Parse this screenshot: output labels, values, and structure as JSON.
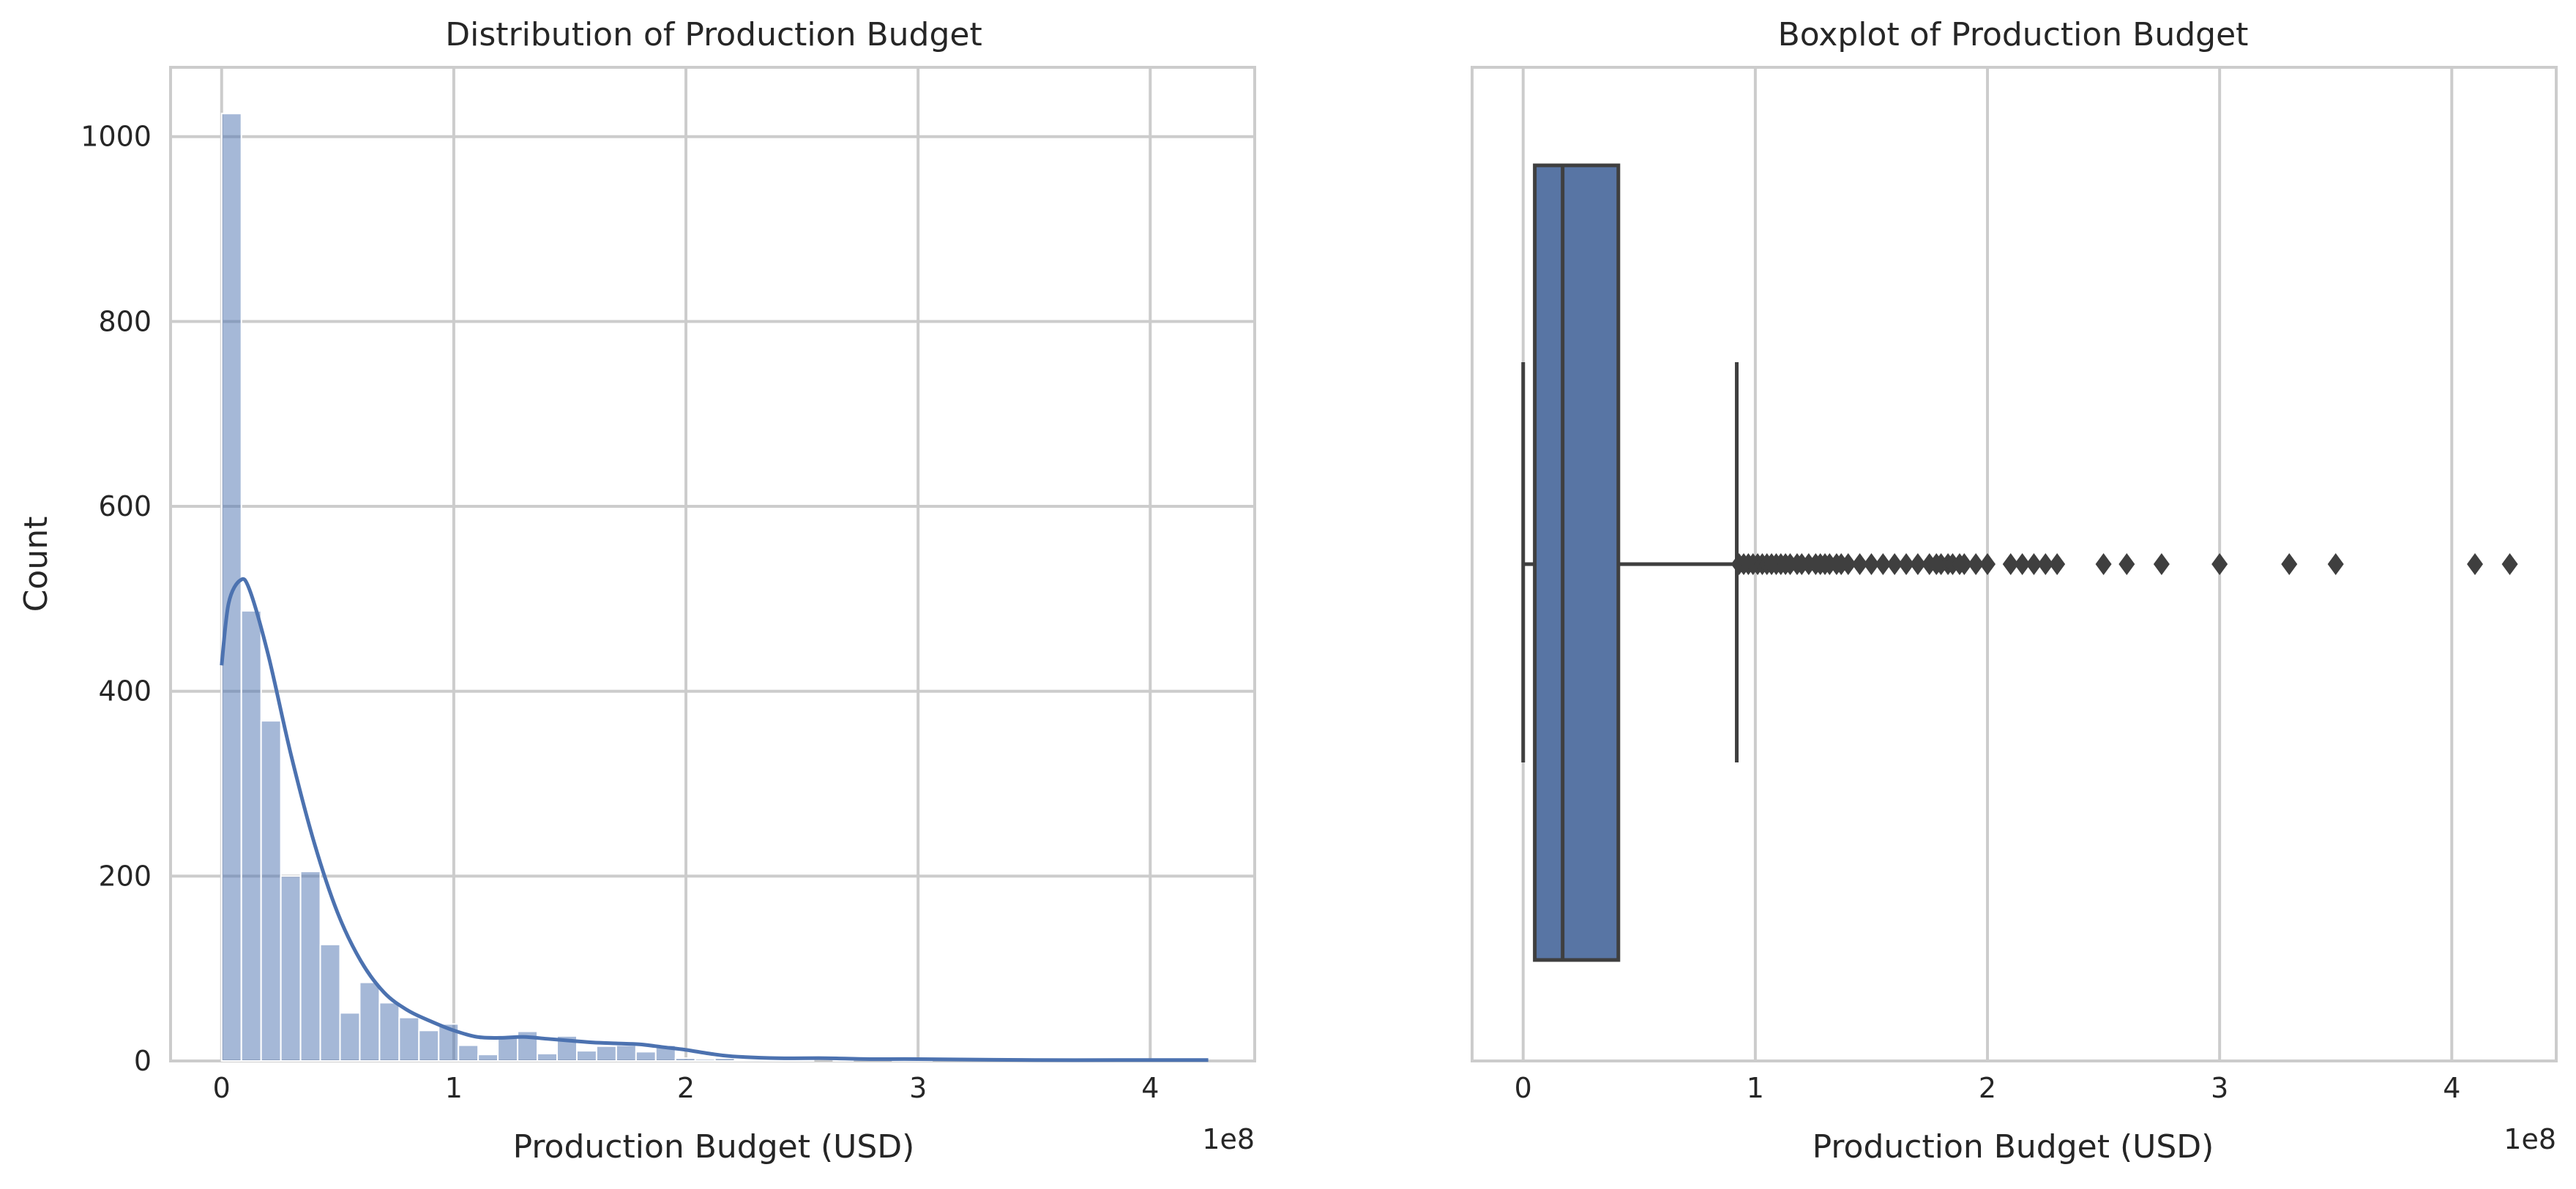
{
  "chart_data": [
    {
      "type": "histogram",
      "title": "Distribution of Production Budget",
      "xlabel": "Production Budget (USD)",
      "ylabel": "Count",
      "x_offset_label": "1e8",
      "xlim": [
        -0.22,
        4.45
      ],
      "ylim": [
        0,
        1075
      ],
      "x_ticks": [
        0,
        1,
        2,
        3,
        4
      ],
      "y_ticks": [
        0,
        200,
        400,
        600,
        800,
        1000
      ],
      "grid": true,
      "kde": true,
      "color": "#4c72b0",
      "bins": {
        "start": 0.0,
        "width": 0.085,
        "counts": [
          1025,
          487,
          368,
          200,
          205,
          126,
          52,
          85,
          63,
          47,
          33,
          40,
          17,
          7,
          27,
          32,
          8,
          27,
          11,
          16,
          17,
          10,
          17,
          3,
          2,
          3,
          1,
          1,
          1,
          1,
          0,
          1,
          0,
          0,
          1,
          1,
          0,
          0,
          0,
          0,
          0,
          1,
          0,
          0,
          0,
          0,
          0,
          0,
          0,
          0
        ]
      },
      "kde_points": [
        [
          0.0,
          428
        ],
        [
          0.03,
          495
        ],
        [
          0.08,
          520
        ],
        [
          0.12,
          510
        ],
        [
          0.2,
          440
        ],
        [
          0.3,
          330
        ],
        [
          0.4,
          235
        ],
        [
          0.5,
          160
        ],
        [
          0.6,
          108
        ],
        [
          0.7,
          74
        ],
        [
          0.8,
          55
        ],
        [
          0.9,
          43
        ],
        [
          1.0,
          33
        ],
        [
          1.1,
          26
        ],
        [
          1.2,
          25
        ],
        [
          1.3,
          26
        ],
        [
          1.4,
          24
        ],
        [
          1.5,
          22
        ],
        [
          1.6,
          20
        ],
        [
          1.7,
          19
        ],
        [
          1.8,
          18
        ],
        [
          1.9,
          15
        ],
        [
          2.0,
          12
        ],
        [
          2.1,
          8
        ],
        [
          2.2,
          5
        ],
        [
          2.4,
          3
        ],
        [
          2.6,
          3
        ],
        [
          2.8,
          2
        ],
        [
          3.0,
          2
        ],
        [
          3.5,
          1
        ],
        [
          4.0,
          1
        ],
        [
          4.25,
          1
        ]
      ]
    },
    {
      "type": "boxplot",
      "title": "Boxplot of Production Budget",
      "xlabel": "Production Budget (USD)",
      "x_offset_label": "1e8",
      "xlim": [
        -0.22,
        4.45
      ],
      "x_ticks": [
        0,
        1,
        2,
        3,
        4
      ],
      "grid": true,
      "color": "#5875a4",
      "whisker_low": 0.0,
      "q1": 0.05,
      "median": 0.17,
      "q3": 0.41,
      "whisker_high": 0.92,
      "outliers": [
        0.93,
        0.95,
        0.97,
        0.99,
        1.01,
        1.03,
        1.05,
        1.07,
        1.09,
        1.11,
        1.13,
        1.15,
        1.18,
        1.2,
        1.23,
        1.26,
        1.28,
        1.3,
        1.32,
        1.35,
        1.37,
        1.4,
        1.45,
        1.5,
        1.55,
        1.6,
        1.65,
        1.7,
        1.75,
        1.78,
        1.8,
        1.83,
        1.85,
        1.88,
        1.9,
        1.95,
        2.0,
        2.1,
        2.15,
        2.2,
        2.25,
        2.3,
        2.5,
        2.6,
        2.75,
        3.0,
        3.3,
        3.5,
        4.1,
        4.25
      ]
    }
  ]
}
